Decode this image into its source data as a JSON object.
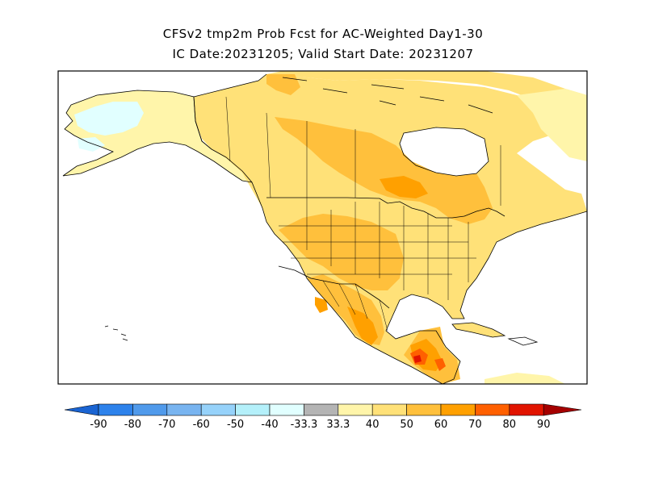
{
  "title_line1": "CFSv2 tmp2m Prob Fcst for AC-Weighted Day1-30",
  "title_line2": "IC Date:20231205; Valid Start Date: 20231207",
  "colorbar": {
    "labels": [
      "-90",
      "-80",
      "-70",
      "-60",
      "-50",
      "-40",
      "-33.3",
      "33.3",
      "40",
      "50",
      "60",
      "70",
      "80",
      "90"
    ],
    "colors": [
      "#1a64d2",
      "#2d82eb",
      "#509aeb",
      "#78b4f0",
      "#96d2fa",
      "#b4f0fa",
      "#e1ffff",
      "#b4b4b4",
      "#fff5aa",
      "#ffe178",
      "#ffc03c",
      "#ffa000",
      "#ff6000",
      "#e11400",
      "#a50000"
    ]
  },
  "colors": {
    "ocean": "#ffffff",
    "normal_land": "#ffffff",
    "cold_40": "#e1ffff",
    "warm_40": "#fff5aa",
    "warm_50": "#ffe178",
    "warm_60": "#ffc03c",
    "warm_70": "#ffa000",
    "warm_80": "#ff6000",
    "warm_90": "#e11400"
  }
}
